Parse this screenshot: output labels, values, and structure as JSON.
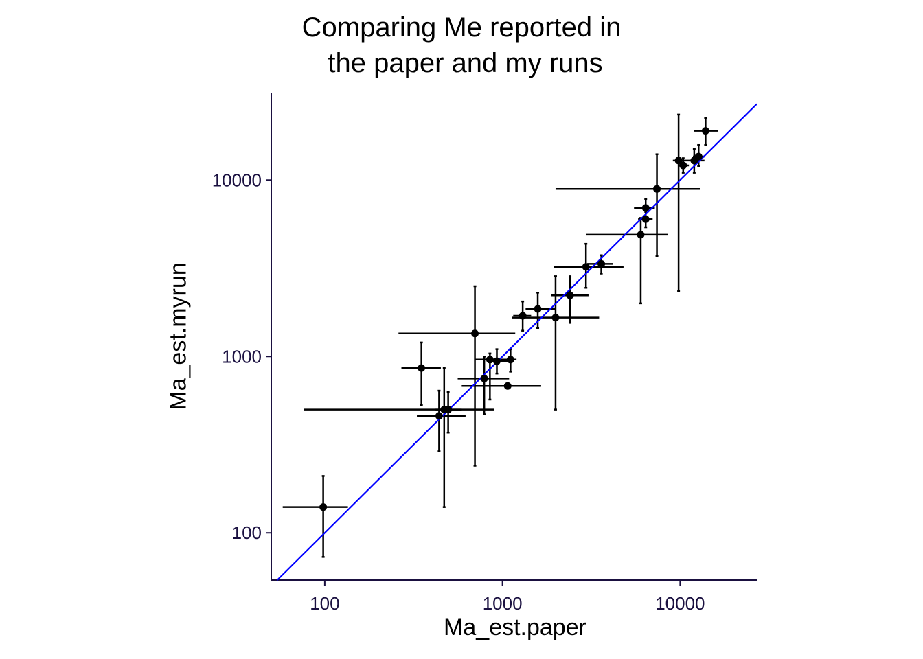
{
  "chart_data": {
    "type": "scatter",
    "title_lines": [
      "Comparing Me reported in",
      " the paper and my runs"
    ],
    "xlabel": "Ma_est.paper",
    "ylabel": "Ma_est.myrun",
    "xscale": "log10",
    "yscale": "log10",
    "xlim": [
      50,
      27000
    ],
    "ylim": [
      54,
      31000
    ],
    "xticks": [
      100,
      1000,
      10000
    ],
    "xtick_labels": [
      "100",
      "1000",
      "10000"
    ],
    "yticks": [
      100,
      1000,
      10000
    ],
    "ytick_labels": [
      "100",
      "1000",
      "10000"
    ],
    "grid": false,
    "reference_line": {
      "label": "y = x",
      "color": "#0000ff"
    },
    "axis_color": "#1a1040",
    "point_color": "#000000",
    "points": [
      {
        "x": 98,
        "y": 140,
        "xerr": [
          58,
          135
        ],
        "yerr": [
          73,
          210
        ]
      },
      {
        "x": 350,
        "y": 860,
        "xerr": [
          270,
          450
        ],
        "yerr": [
          530,
          1200
        ]
      },
      {
        "x": 440,
        "y": 460,
        "xerr": [
          330,
          620
        ],
        "yerr": [
          290,
          640
        ]
      },
      {
        "x": 470,
        "y": 500,
        "xerr": [
          76,
          900
        ],
        "yerr": [
          140,
          860
        ]
      },
      {
        "x": 495,
        "y": 500,
        "xerr": [
          420,
          590
        ],
        "yerr": [
          370,
          630
        ]
      },
      {
        "x": 700,
        "y": 1350,
        "xerr": [
          260,
          1180
        ],
        "yerr": [
          240,
          2500
        ]
      },
      {
        "x": 790,
        "y": 750,
        "xerr": [
          560,
          1090
        ],
        "yerr": [
          470,
          1000
        ]
      },
      {
        "x": 850,
        "y": 960,
        "xerr": [
          700,
          1000
        ],
        "yerr": [
          570,
          1040
        ]
      },
      {
        "x": 930,
        "y": 940,
        "xerr": [
          820,
          1100
        ],
        "yerr": [
          800,
          1100
        ]
      },
      {
        "x": 1070,
        "y": 680,
        "xerr": [
          590,
          1650
        ],
        "yerr": [
          680,
          680
        ]
      },
      {
        "x": 1110,
        "y": 960,
        "xerr": [
          700,
          1200
        ],
        "yerr": [
          820,
          1100
        ]
      },
      {
        "x": 1300,
        "y": 1700,
        "xerr": [
          1150,
          1450
        ],
        "yerr": [
          1400,
          2050
        ]
      },
      {
        "x": 1580,
        "y": 1860,
        "xerr": [
          1350,
          2000
        ],
        "yerr": [
          1450,
          2300
        ]
      },
      {
        "x": 1990,
        "y": 1660,
        "xerr": [
          1130,
          3500
        ],
        "yerr": [
          500,
          2850
        ]
      },
      {
        "x": 2400,
        "y": 2220,
        "xerr": [
          1880,
          3050
        ],
        "yerr": [
          1550,
          2850
        ]
      },
      {
        "x": 2950,
        "y": 3220,
        "xerr": [
          1950,
          4800
        ],
        "yerr": [
          2450,
          4350
        ]
      },
      {
        "x": 3600,
        "y": 3350,
        "xerr": [
          3000,
          4200
        ],
        "yerr": [
          2950,
          3750
        ]
      },
      {
        "x": 6000,
        "y": 4900,
        "xerr": [
          2950,
          8500
        ],
        "yerr": [
          2000,
          6100
        ]
      },
      {
        "x": 6400,
        "y": 6000,
        "xerr": [
          5800,
          7000
        ],
        "yerr": [
          5400,
          6600
        ]
      },
      {
        "x": 6400,
        "y": 6950,
        "xerr": [
          5500,
          7200
        ],
        "yerr": [
          6200,
          7800
        ]
      },
      {
        "x": 7400,
        "y": 8900,
        "xerr": [
          1990,
          12900
        ],
        "yerr": [
          3700,
          14000
        ]
      },
      {
        "x": 9800,
        "y": 12900,
        "xerr": [
          9100,
          10500
        ],
        "yerr": [
          2350,
          23500
        ]
      },
      {
        "x": 10400,
        "y": 12100,
        "xerr": [
          9700,
          11200
        ],
        "yerr": [
          11000,
          13300
        ]
      },
      {
        "x": 12000,
        "y": 12900,
        "xerr": [
          10300,
          13700
        ],
        "yerr": [
          11000,
          15000
        ]
      },
      {
        "x": 12700,
        "y": 13600,
        "xerr": [
          11800,
          13800
        ],
        "yerr": [
          12000,
          15800
        ]
      },
      {
        "x": 13900,
        "y": 19000,
        "xerr": [
          12000,
          16300
        ],
        "yerr": [
          15800,
          22500
        ]
      }
    ]
  }
}
